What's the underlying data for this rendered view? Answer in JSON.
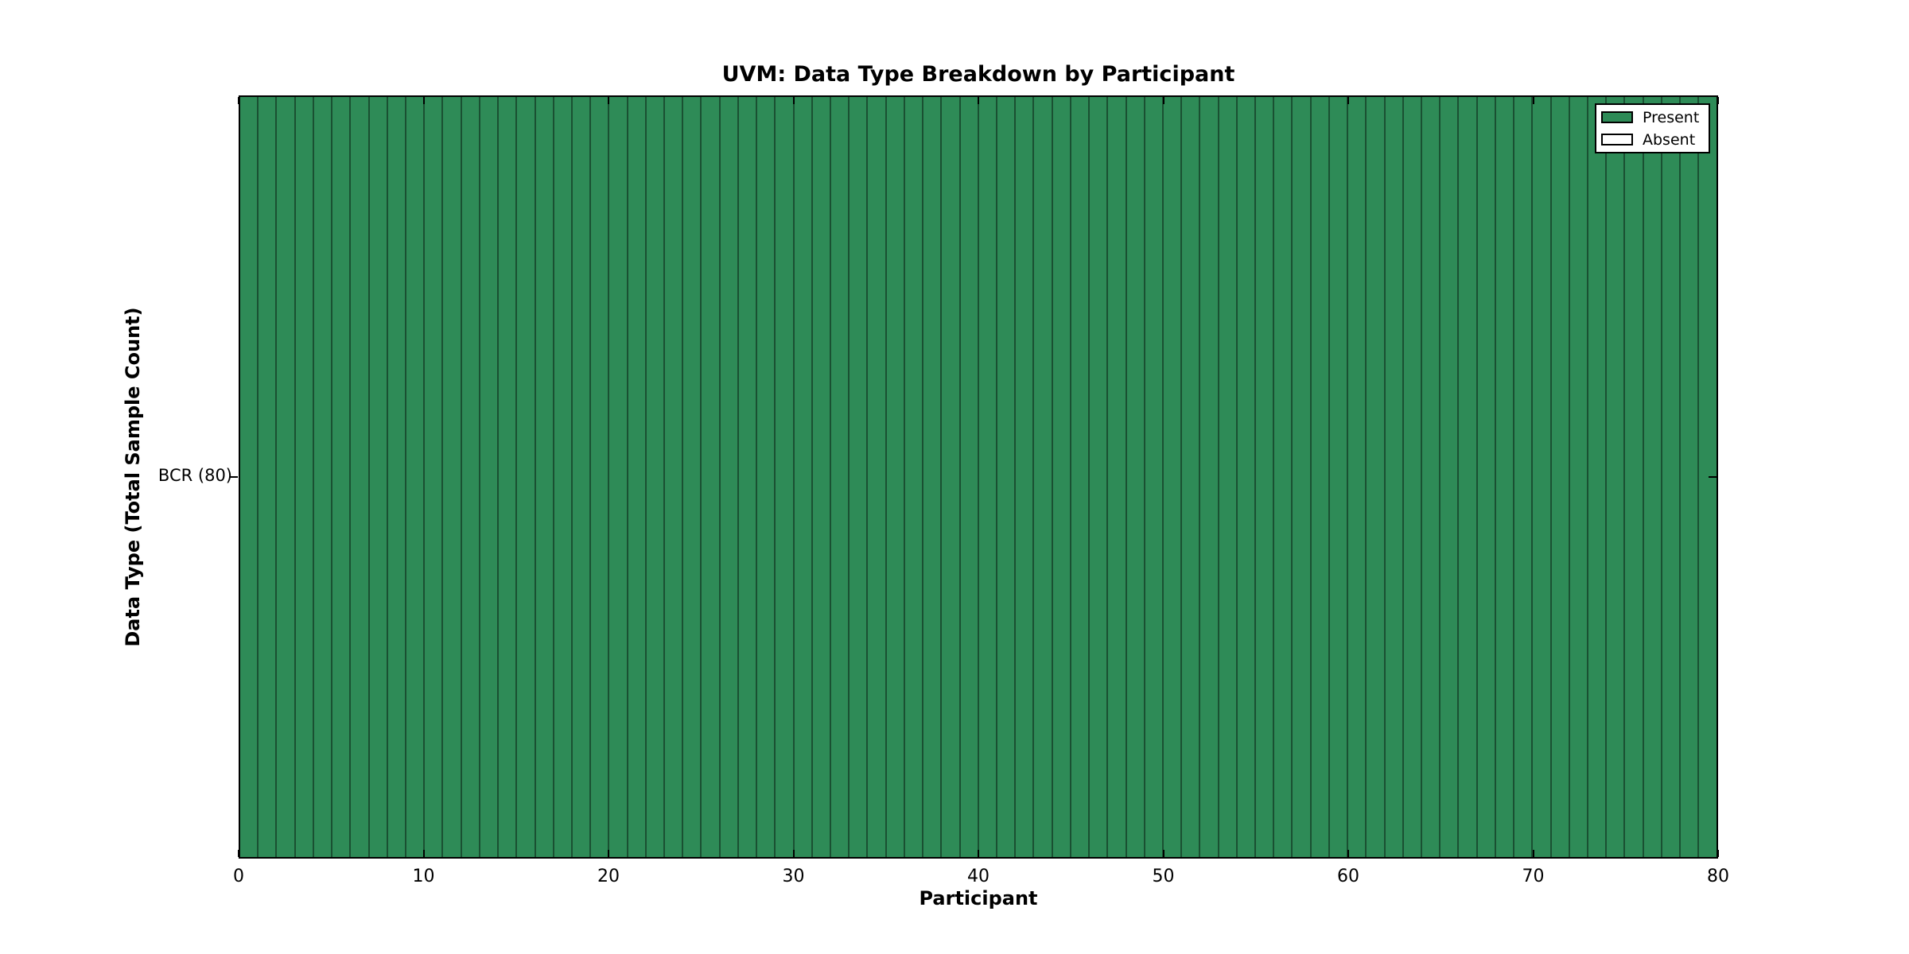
{
  "chart_data": {
    "type": "heatmap",
    "title": "UVM: Data Type Breakdown by Participant",
    "xlabel": "Participant",
    "ylabel": "Data Type (Total Sample Count)",
    "xlim": [
      0,
      80
    ],
    "x_ticks": [
      0,
      10,
      20,
      30,
      40,
      50,
      60,
      70,
      80
    ],
    "rows": [
      {
        "label": "BCR (80)",
        "data_type": "BCR",
        "total_sample_count": 80,
        "values": [
          1,
          1,
          1,
          1,
          1,
          1,
          1,
          1,
          1,
          1,
          1,
          1,
          1,
          1,
          1,
          1,
          1,
          1,
          1,
          1,
          1,
          1,
          1,
          1,
          1,
          1,
          1,
          1,
          1,
          1,
          1,
          1,
          1,
          1,
          1,
          1,
          1,
          1,
          1,
          1,
          1,
          1,
          1,
          1,
          1,
          1,
          1,
          1,
          1,
          1,
          1,
          1,
          1,
          1,
          1,
          1,
          1,
          1,
          1,
          1,
          1,
          1,
          1,
          1,
          1,
          1,
          1,
          1,
          1,
          1,
          1,
          1,
          1,
          1,
          1,
          1,
          1,
          1,
          1,
          1
        ]
      }
    ],
    "value_legend": {
      "1": "Present",
      "0": "Absent"
    },
    "legend": {
      "position": "upper right",
      "entries": [
        {
          "label": "Present",
          "color": "#2e8b57"
        },
        {
          "label": "Absent",
          "color": "#ffffff"
        }
      ]
    },
    "colors": {
      "present": "#2e8b57",
      "absent": "#ffffff",
      "cell_border": "rgba(0,0,0,0.42)",
      "spine": "#000000",
      "background": "#ffffff"
    },
    "grid": false
  }
}
